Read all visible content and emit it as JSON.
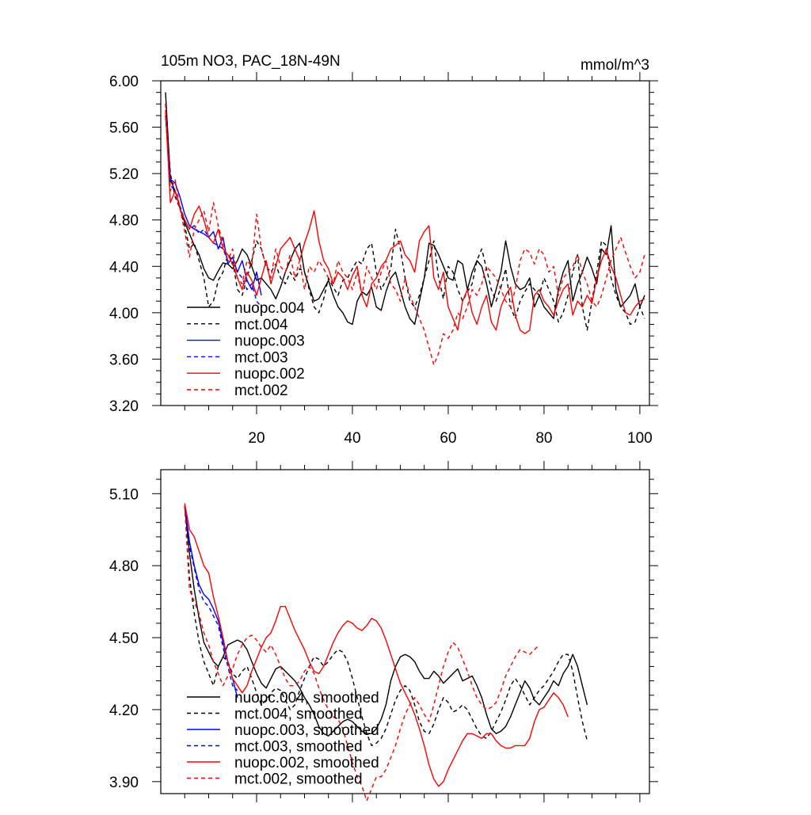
{
  "figure": {
    "title_left": "105m NO3, PAC_18N-49N",
    "title_right": "mmol/m^3"
  },
  "chart_data": [
    {
      "type": "line",
      "panel": "top",
      "title": "105m NO3, PAC_18N-49N",
      "units": "mmol/m^3",
      "xlim": [
        0,
        102
      ],
      "ylim": [
        3.2,
        6.0
      ],
      "xticks": [
        20,
        40,
        60,
        80,
        100
      ],
      "xtick_labels": [
        "20",
        "40",
        "60",
        "80",
        "100"
      ],
      "yticks": [
        3.2,
        3.6,
        4.0,
        4.4,
        4.8,
        5.2,
        5.6,
        6.0
      ],
      "ytick_labels": [
        "3.20",
        "3.60",
        "4.00",
        "4.40",
        "4.80",
        "5.20",
        "5.60",
        "6.00"
      ],
      "legend_position": "bottom-left",
      "series": [
        {
          "name": "nuopc.004",
          "color": "#000000",
          "dashed": false,
          "x_start": 1,
          "values": [
            5.9,
            5.15,
            5.05,
            4.9,
            4.78,
            4.68,
            4.58,
            4.5,
            4.38,
            4.3,
            4.28,
            4.36,
            4.43,
            4.42,
            4.38,
            4.45,
            4.55,
            4.5,
            4.4,
            4.28,
            4.3,
            4.25,
            4.2,
            4.12,
            4.22,
            4.35,
            4.45,
            4.55,
            4.6,
            4.35,
            4.22,
            4.1,
            4.12,
            4.2,
            4.28,
            4.15,
            4.05,
            4.0,
            3.92,
            3.9,
            4.1,
            4.18,
            4.15,
            4.22,
            4.05,
            4.02,
            4.18,
            4.3,
            4.35,
            4.2,
            4.05,
            3.95,
            3.9,
            4.1,
            4.3,
            4.6,
            4.58,
            4.5,
            4.4,
            4.3,
            4.28,
            4.45,
            4.42,
            4.2,
            4.35,
            4.45,
            4.4,
            4.25,
            4.05,
            4.2,
            4.35,
            4.62,
            4.4,
            4.25,
            4.2,
            4.22,
            4.3,
            4.05,
            4.15,
            4.05,
            4.0,
            3.95,
            4.2,
            4.35,
            4.45,
            4.1,
            4.25,
            4.35,
            4.48,
            4.38,
            4.25,
            4.55,
            4.5,
            4.75,
            4.2,
            4.05,
            4.1,
            4.15,
            4.25,
            4.05,
            4.15
          ]
        },
        {
          "name": "mct.004",
          "color": "#000000",
          "dashed": true,
          "x_start": 1,
          "values": [
            5.8,
            5.2,
            5.0,
            4.9,
            4.75,
            4.55,
            4.6,
            4.45,
            4.3,
            4.05,
            4.1,
            4.28,
            4.35,
            4.5,
            4.45,
            4.2,
            4.15,
            4.3,
            4.45,
            4.62,
            4.55,
            4.4,
            4.35,
            4.42,
            4.3,
            4.25,
            4.35,
            4.28,
            4.38,
            4.35,
            4.2,
            4.05,
            4.0,
            4.12,
            4.3,
            4.22,
            4.15,
            4.28,
            4.3,
            4.38,
            4.45,
            4.42,
            4.55,
            4.6,
            4.35,
            4.2,
            4.28,
            4.38,
            4.72,
            4.55,
            4.3,
            4.1,
            4.05,
            4.15,
            4.3,
            4.45,
            4.62,
            4.3,
            4.12,
            4.4,
            4.35,
            4.2,
            4.1,
            4.18,
            4.25,
            4.45,
            4.55,
            4.38,
            4.2,
            4.1,
            4.22,
            4.38,
            4.05,
            3.95,
            4.1,
            4.18,
            4.25,
            4.2,
            4.15,
            4.3,
            4.2,
            4.1,
            3.92,
            4.0,
            4.15,
            4.35,
            4.5,
            4.05,
            3.85,
            4.1,
            4.35,
            4.62,
            4.58,
            4.3,
            4.15,
            4.05,
            4.0,
            3.9,
            3.92,
            4.05,
            3.95
          ]
        },
        {
          "name": "nuopc.003",
          "color": "#0000ff",
          "dashed": false,
          "x_start": 1,
          "values": [
            5.7,
            5.15,
            5.12,
            5.0,
            4.85,
            4.75,
            4.72,
            4.7,
            4.68,
            4.65,
            4.7,
            4.55,
            4.65,
            4.42,
            4.48,
            4.35,
            4.45,
            4.28,
            4.2,
            4.35,
            4.15
          ]
        },
        {
          "name": "mct.003",
          "color": "#0000ff",
          "dashed": true,
          "x_start": 1,
          "values": [
            5.7,
            5.1,
            5.05,
            4.92,
            4.8,
            4.72,
            4.75,
            4.68,
            4.72,
            4.65,
            4.6,
            4.58,
            4.55,
            4.45,
            4.42,
            4.35,
            4.3,
            4.2,
            4.25,
            4.1,
            4.05
          ]
        },
        {
          "name": "nuopc.002",
          "color": "#ff0000",
          "dashed": false,
          "x_start": 1,
          "values": [
            5.75,
            4.95,
            5.05,
            4.9,
            4.8,
            4.72,
            4.85,
            4.92,
            4.8,
            4.65,
            4.6,
            4.72,
            4.55,
            4.5,
            4.42,
            4.3,
            4.2,
            4.35,
            4.28,
            4.15,
            4.3,
            4.45,
            4.25,
            4.4,
            4.55,
            4.6,
            4.65,
            4.55,
            4.45,
            4.6,
            4.72,
            4.88,
            4.62,
            4.45,
            4.38,
            4.25,
            4.35,
            4.3,
            4.2,
            4.32,
            4.4,
            4.15,
            4.05,
            4.25,
            4.3,
            4.4,
            4.45,
            4.55,
            4.58,
            4.62,
            4.5,
            4.45,
            4.35,
            4.62,
            4.7,
            4.75,
            4.3,
            4.2,
            4.35,
            4.05,
            3.95,
            3.85,
            4.1,
            4.2,
            4.0,
            3.9,
            4.05,
            4.15,
            3.92,
            3.85,
            4.05,
            4.15,
            4.22,
            3.98,
            3.85,
            3.82,
            3.85,
            4.15,
            4.2,
            4.1,
            4.05,
            3.98,
            4.1,
            4.2,
            4.25,
            3.98,
            4.1,
            4.05,
            4.15,
            4.08,
            4.3,
            4.45,
            4.55,
            4.4,
            4.3,
            4.15,
            4.0,
            3.98,
            4.05,
            4.1,
            4.12
          ]
        },
        {
          "name": "mct.002",
          "color": "#ff0000",
          "dashed": true,
          "x_start": 1,
          "values": [
            5.8,
            5.05,
            5.15,
            4.9,
            4.7,
            4.48,
            4.72,
            4.8,
            4.88,
            4.7,
            4.95,
            4.75,
            4.6,
            4.45,
            4.55,
            4.3,
            4.25,
            4.45,
            4.4,
            4.85,
            4.55,
            4.4,
            4.3,
            4.55,
            4.4,
            4.35,
            4.5,
            4.3,
            4.45,
            4.2,
            4.4,
            4.35,
            4.45,
            4.38,
            4.3,
            4.25,
            4.45,
            4.35,
            4.3,
            4.2,
            4.35,
            4.15,
            4.4,
            4.3,
            4.2,
            4.35,
            4.45,
            4.25,
            4.2,
            4.1,
            4.3,
            4.15,
            4.05,
            3.95,
            3.85,
            3.7,
            3.55,
            3.65,
            3.82,
            3.78,
            3.85,
            4.0,
            3.95,
            4.05,
            4.2,
            4.15,
            4.25,
            4.4,
            4.35,
            4.3,
            4.2,
            4.1,
            4.05,
            4.2,
            4.45,
            4.55,
            4.52,
            4.42,
            4.55,
            4.5,
            4.35,
            4.4,
            4.15,
            4.3,
            4.35,
            4.4,
            4.5,
            4.35,
            4.25,
            4.1,
            4.05,
            4.15,
            4.3,
            4.45,
            4.55,
            4.65,
            4.52,
            4.4,
            4.3,
            4.35,
            4.5
          ]
        }
      ]
    },
    {
      "type": "line",
      "panel": "bottom",
      "title": "",
      "xlim": [
        0,
        102
      ],
      "ylim": [
        3.85,
        5.2
      ],
      "xticks": [
        20,
        40,
        60,
        80,
        100
      ],
      "xtick_labels": [
        "",
        "",
        "",
        "",
        ""
      ],
      "yticks": [
        3.9,
        4.2,
        4.5,
        4.8,
        5.1
      ],
      "ytick_labels": [
        "3.90",
        "4.20",
        "4.50",
        "4.80",
        "5.10"
      ],
      "legend_position": "bottom-left",
      "series": [
        {
          "name": "nuopc.004, smoothed",
          "color": "#000000",
          "dashed": false,
          "x_start": 5,
          "values": [
            5.05,
            4.85,
            4.7,
            4.58,
            4.48,
            4.44,
            4.4,
            4.38,
            4.42,
            4.47,
            4.48,
            4.49,
            4.48,
            4.45,
            4.4,
            4.35,
            4.31,
            4.29,
            4.33,
            4.37,
            4.38,
            4.36,
            4.34,
            4.32,
            4.29,
            4.25,
            4.22,
            4.18,
            4.13,
            4.1,
            4.09,
            4.11,
            4.13,
            4.15,
            4.16,
            4.15,
            4.13,
            4.11,
            4.1,
            4.1,
            4.12,
            4.16,
            4.22,
            4.32,
            4.38,
            4.42,
            4.43,
            4.42,
            4.4,
            4.36,
            4.33,
            4.33,
            4.36,
            4.34,
            4.31,
            4.33,
            4.35,
            4.37,
            4.32,
            4.33,
            4.34,
            4.3,
            4.25,
            4.18,
            4.12,
            4.1,
            4.11,
            4.13,
            4.17,
            4.22,
            4.27,
            4.32,
            4.29,
            4.24,
            4.22,
            4.25,
            4.28,
            4.32,
            4.3,
            4.35,
            4.38,
            4.43,
            4.38,
            4.3,
            4.22
          ]
        },
        {
          "name": "mct.004, smoothed",
          "color": "#000000",
          "dashed": true,
          "x_start": 5,
          "values": [
            5.05,
            4.75,
            4.6,
            4.48,
            4.4,
            4.35,
            4.3,
            4.38,
            4.42,
            4.4,
            4.35,
            4.33,
            4.36,
            4.38,
            4.33,
            4.27,
            4.22,
            4.24,
            4.27,
            4.29,
            4.28,
            4.24,
            4.2,
            4.22,
            4.28,
            4.33,
            4.38,
            4.42,
            4.41,
            4.38,
            4.4,
            4.43,
            4.45,
            4.44,
            4.4,
            4.33,
            4.25,
            4.17,
            4.1,
            4.05,
            4.06,
            4.08,
            4.12,
            4.18,
            4.24,
            4.28,
            4.3,
            4.28,
            4.22,
            4.15,
            4.11,
            4.1,
            4.14,
            4.2,
            4.25,
            4.23,
            4.19,
            4.2,
            4.22,
            4.2,
            4.16,
            4.12,
            4.09,
            4.08,
            4.11,
            4.15,
            4.19,
            4.24,
            4.3,
            4.33,
            4.3,
            4.26,
            4.22,
            4.25,
            4.28,
            4.3,
            4.33,
            4.36,
            4.4,
            4.43,
            4.43,
            4.36,
            4.25,
            4.15,
            4.07
          ]
        },
        {
          "name": "nuopc.003, smoothed",
          "color": "#0000ff",
          "dashed": false,
          "x_start": 5,
          "values": [
            5.05,
            4.9,
            4.8,
            4.72,
            4.68,
            4.66,
            4.62,
            4.57,
            4.48,
            4.4,
            4.33,
            4.25
          ]
        },
        {
          "name": "mct.003, smoothed",
          "color": "#0000ff",
          "dashed": true,
          "x_start": 5,
          "values": [
            5.05,
            4.88,
            4.79,
            4.7,
            4.65,
            4.63,
            4.59,
            4.55,
            4.46,
            4.38,
            4.3,
            4.28
          ]
        },
        {
          "name": "nuopc.002, smoothed",
          "color": "#ff0000",
          "dashed": false,
          "x_start": 5,
          "values": [
            5.06,
            4.95,
            4.92,
            4.86,
            4.8,
            4.77,
            4.67,
            4.59,
            4.5,
            4.4,
            4.33,
            4.3,
            4.27,
            4.3,
            4.36,
            4.41,
            4.46,
            4.5,
            4.52,
            4.57,
            4.63,
            4.63,
            4.58,
            4.53,
            4.49,
            4.45,
            4.4,
            4.36,
            4.35,
            4.38,
            4.43,
            4.48,
            4.52,
            4.55,
            4.57,
            4.56,
            4.54,
            4.53,
            4.55,
            4.58,
            4.57,
            4.54,
            4.49,
            4.43,
            4.37,
            4.31,
            4.27,
            4.23,
            4.18,
            4.12,
            4.05,
            3.97,
            3.91,
            3.88,
            3.9,
            3.95,
            3.99,
            4.03,
            4.07,
            4.1,
            4.1,
            4.09,
            4.08,
            4.1,
            4.1,
            4.07,
            4.05,
            4.04,
            4.04,
            4.05,
            4.05,
            4.05,
            4.08,
            4.15,
            4.2,
            4.21,
            4.24,
            4.27,
            4.25,
            4.22,
            4.17
          ]
        },
        {
          "name": "mct.002, smoothed",
          "color": "#ff0000",
          "dashed": true,
          "x_start": 5,
          "values": [
            5.05,
            4.7,
            4.65,
            4.6,
            4.52,
            4.47,
            4.4,
            4.35,
            4.3,
            4.34,
            4.37,
            4.43,
            4.47,
            4.5,
            4.51,
            4.49,
            4.46,
            4.44,
            4.47,
            4.43,
            4.38,
            4.33,
            4.3,
            4.3,
            4.32,
            4.36,
            4.38,
            4.35,
            4.29,
            4.24,
            4.2,
            4.17,
            4.16,
            4.12,
            4.05,
            3.98,
            3.92,
            3.88,
            3.82,
            3.87,
            3.92,
            3.92,
            3.95,
            4.0,
            4.05,
            4.12,
            4.18,
            4.22,
            4.25,
            4.22,
            4.18,
            4.15,
            4.22,
            4.3,
            4.38,
            4.44,
            4.48,
            4.46,
            4.41,
            4.36,
            4.3,
            4.25,
            4.22,
            4.2,
            4.21,
            4.23,
            4.28,
            4.34,
            4.38,
            4.42,
            4.45,
            4.44,
            4.43,
            4.45,
            4.47
          ]
        }
      ]
    }
  ]
}
